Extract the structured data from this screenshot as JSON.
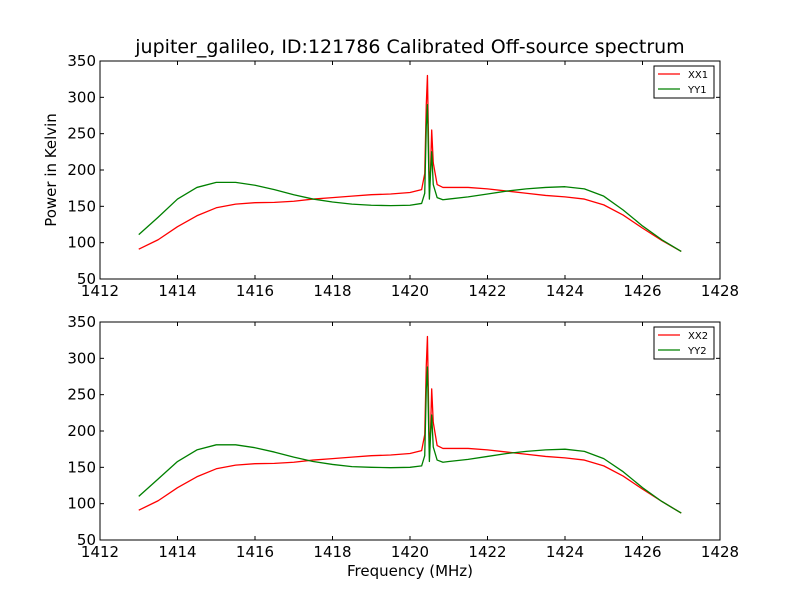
{
  "figure": {
    "title": "jupiter_galileo, ID:121786 Calibrated Off-source spectrum"
  },
  "chart_data": [
    {
      "type": "line",
      "title": "jupiter_galileo, ID:121786 Calibrated Off-source spectrum",
      "xlabel": "",
      "ylabel": "Power in Kelvin",
      "xlim": [
        1412,
        1428
      ],
      "ylim": [
        50,
        350
      ],
      "xticks": [
        1412,
        1414,
        1416,
        1418,
        1420,
        1422,
        1424,
        1426,
        1428
      ],
      "yticks": [
        50,
        100,
        150,
        200,
        250,
        300,
        350
      ],
      "legend_position": "top-right",
      "grid": false,
      "series": [
        {
          "name": "XX1",
          "color": "#ff0000",
          "x": [
            1413.0,
            1413.5,
            1414.0,
            1414.5,
            1415.0,
            1415.5,
            1416.0,
            1416.5,
            1417.0,
            1417.5,
            1418.0,
            1418.5,
            1419.0,
            1419.5,
            1420.0,
            1420.3,
            1420.38,
            1420.42,
            1420.45,
            1420.48,
            1420.5,
            1420.53,
            1420.56,
            1420.6,
            1420.7,
            1420.85,
            1421.0,
            1421.5,
            1422.0,
            1422.5,
            1423.0,
            1423.5,
            1424.0,
            1424.5,
            1425.0,
            1425.5,
            1426.0,
            1426.5,
            1427.0
          ],
          "y": [
            91,
            104,
            122,
            137,
            148,
            153,
            155,
            155.5,
            157,
            160,
            162,
            164,
            166,
            167,
            169,
            173,
            195,
            290,
            330,
            235,
            175,
            200,
            255,
            210,
            180,
            176,
            176,
            176,
            174,
            171,
            168,
            165,
            163,
            160,
            152,
            138,
            120,
            103,
            88
          ]
        },
        {
          "name": "YY1",
          "color": "#008000",
          "x": [
            1413.0,
            1413.5,
            1414.0,
            1414.5,
            1415.0,
            1415.5,
            1416.0,
            1416.5,
            1417.0,
            1417.5,
            1418.0,
            1418.5,
            1419.0,
            1419.5,
            1420.0,
            1420.3,
            1420.38,
            1420.42,
            1420.45,
            1420.48,
            1420.5,
            1420.53,
            1420.56,
            1420.6,
            1420.7,
            1420.85,
            1421.0,
            1421.5,
            1422.0,
            1422.5,
            1423.0,
            1423.5,
            1424.0,
            1424.5,
            1425.0,
            1425.5,
            1426.0,
            1426.5,
            1427.0
          ],
          "y": [
            111,
            135,
            160,
            176,
            183,
            183,
            179,
            173,
            166,
            160,
            156,
            153,
            151.5,
            151,
            151.5,
            154,
            168,
            260,
            290,
            210,
            160,
            195,
            225,
            180,
            162,
            159,
            160,
            163,
            167,
            171,
            174,
            176,
            177,
            174,
            164,
            145,
            123,
            104,
            88
          ]
        }
      ]
    },
    {
      "type": "line",
      "title": "",
      "xlabel": "Frequency (MHz)",
      "ylabel": "",
      "xlim": [
        1412,
        1428
      ],
      "ylim": [
        50,
        350
      ],
      "xticks": [
        1412,
        1414,
        1416,
        1418,
        1420,
        1422,
        1424,
        1426,
        1428
      ],
      "yticks": [
        50,
        100,
        150,
        200,
        250,
        300,
        350
      ],
      "legend_position": "top-right",
      "grid": false,
      "series": [
        {
          "name": "XX2",
          "color": "#ff0000",
          "x": [
            1413.0,
            1413.5,
            1414.0,
            1414.5,
            1415.0,
            1415.5,
            1416.0,
            1416.5,
            1417.0,
            1417.5,
            1418.0,
            1418.5,
            1419.0,
            1419.5,
            1420.0,
            1420.3,
            1420.38,
            1420.42,
            1420.45,
            1420.48,
            1420.5,
            1420.53,
            1420.56,
            1420.6,
            1420.7,
            1420.85,
            1421.0,
            1421.5,
            1422.0,
            1422.5,
            1423.0,
            1423.5,
            1424.0,
            1424.5,
            1425.0,
            1425.5,
            1426.0,
            1426.5,
            1427.0
          ],
          "y": [
            91,
            104,
            122,
            137,
            148,
            153,
            155,
            155.5,
            157,
            160,
            162,
            164,
            166,
            167,
            169,
            173,
            195,
            290,
            330,
            235,
            175,
            200,
            258,
            212,
            180,
            176,
            176,
            176,
            174,
            171,
            168,
            165,
            163,
            160,
            152,
            138,
            120,
            103,
            87
          ]
        },
        {
          "name": "YY2",
          "color": "#008000",
          "x": [
            1413.0,
            1413.5,
            1414.0,
            1414.5,
            1415.0,
            1415.5,
            1416.0,
            1416.5,
            1417.0,
            1417.5,
            1418.0,
            1418.5,
            1419.0,
            1419.5,
            1420.0,
            1420.3,
            1420.38,
            1420.42,
            1420.45,
            1420.48,
            1420.5,
            1420.53,
            1420.56,
            1420.6,
            1420.7,
            1420.85,
            1421.0,
            1421.5,
            1422.0,
            1422.5,
            1423.0,
            1423.5,
            1424.0,
            1424.5,
            1425.0,
            1425.5,
            1426.0,
            1426.5,
            1427.0
          ],
          "y": [
            110,
            134,
            158,
            174,
            181,
            181,
            177,
            171,
            164,
            158,
            154,
            151,
            150,
            149.5,
            150,
            152,
            166,
            258,
            288,
            208,
            158,
            193,
            222,
            178,
            160,
            157,
            158,
            161,
            165,
            169,
            172,
            174,
            175,
            172,
            162,
            144,
            122,
            103,
            87
          ]
        }
      ]
    }
  ]
}
